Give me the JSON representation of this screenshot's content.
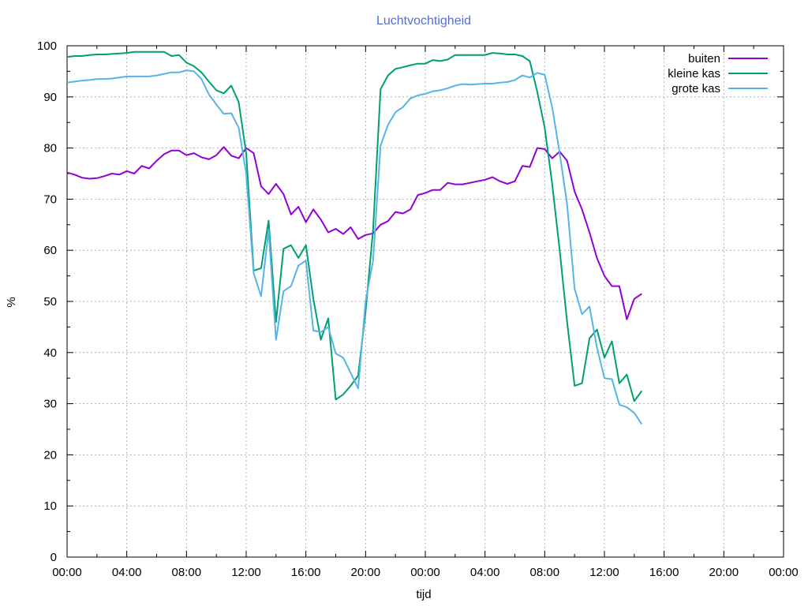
{
  "chart_data": {
    "type": "line",
    "title": "Luchtvochtigheid",
    "xlabel": "tijd",
    "ylabel": "%",
    "ylim": [
      0,
      100
    ],
    "xlim_hours": [
      0,
      48
    ],
    "x_unit": "hours since 00:00 (day 1)",
    "yticks": [
      "0",
      "10",
      "20",
      "30",
      "40",
      "50",
      "60",
      "70",
      "80",
      "90",
      "100"
    ],
    "xticks": [
      "00:00",
      "04:00",
      "08:00",
      "12:00",
      "16:00",
      "20:00",
      "00:00",
      "04:00",
      "08:00",
      "12:00",
      "16:00",
      "20:00",
      "00:00"
    ],
    "grid": true,
    "legend_position": "top-right",
    "series": [
      {
        "name": "buiten",
        "color": "#9400d3",
        "points": [
          [
            0,
            75.2
          ],
          [
            0.5,
            74.8
          ],
          [
            1,
            74.2
          ],
          [
            1.5,
            74
          ],
          [
            2,
            74.1
          ],
          [
            2.5,
            74.5
          ],
          [
            3,
            75
          ],
          [
            3.5,
            74.8
          ],
          [
            4,
            75.5
          ],
          [
            4.5,
            75
          ],
          [
            5,
            76.5
          ],
          [
            5.5,
            76
          ],
          [
            6,
            77.5
          ],
          [
            6.5,
            78.8
          ],
          [
            7,
            79.5
          ],
          [
            7.5,
            79.5
          ],
          [
            8,
            78.6
          ],
          [
            8.5,
            79
          ],
          [
            9,
            78.2
          ],
          [
            9.5,
            77.8
          ],
          [
            10,
            78.6
          ],
          [
            10.5,
            80.2
          ],
          [
            11,
            78.5
          ],
          [
            11.5,
            78
          ],
          [
            12,
            80
          ],
          [
            12.5,
            79
          ],
          [
            13,
            72.5
          ],
          [
            13.5,
            71
          ],
          [
            14,
            73
          ],
          [
            14.5,
            71
          ],
          [
            15,
            67
          ],
          [
            15.5,
            68.5
          ],
          [
            16,
            65.5
          ],
          [
            16.5,
            68
          ],
          [
            17,
            66
          ],
          [
            17.5,
            63.5
          ],
          [
            18,
            64.2
          ],
          [
            18.5,
            63.2
          ],
          [
            19,
            64.5
          ],
          [
            19.5,
            62.2
          ],
          [
            20,
            63
          ],
          [
            20.5,
            63.3
          ],
          [
            21,
            65
          ],
          [
            21.5,
            65.7
          ],
          [
            22,
            67.5
          ],
          [
            22.5,
            67.2
          ],
          [
            23,
            68
          ],
          [
            23.5,
            70.8
          ],
          [
            24,
            71.2
          ],
          [
            24.5,
            71.8
          ],
          [
            25,
            71.8
          ],
          [
            25.5,
            73.2
          ],
          [
            26,
            72.9
          ],
          [
            26.5,
            72.9
          ],
          [
            27,
            73.2
          ],
          [
            27.5,
            73.5
          ],
          [
            28,
            73.8
          ],
          [
            28.5,
            74.3
          ],
          [
            29,
            73.5
          ],
          [
            29.5,
            73
          ],
          [
            30,
            73.5
          ],
          [
            30.5,
            76.5
          ],
          [
            31,
            76.3
          ],
          [
            31.5,
            80
          ],
          [
            32,
            79.8
          ],
          [
            32.5,
            78
          ],
          [
            33,
            79.3
          ],
          [
            33.5,
            77.5
          ],
          [
            34,
            71.5
          ],
          [
            34.5,
            68
          ],
          [
            35,
            63.5
          ],
          [
            35.5,
            58.5
          ],
          [
            36,
            55
          ],
          [
            36.5,
            53
          ],
          [
            37,
            53
          ],
          [
            37.5,
            46.5
          ],
          [
            38,
            50.5
          ],
          [
            38.5,
            51.5
          ]
        ]
      },
      {
        "name": "kleine kas",
        "color": "#009e73",
        "points": [
          [
            0,
            97.8
          ],
          [
            0.5,
            98
          ],
          [
            1,
            98
          ],
          [
            1.5,
            98.2
          ],
          [
            2,
            98.3
          ],
          [
            2.5,
            98.3
          ],
          [
            3,
            98.4
          ],
          [
            3.5,
            98.5
          ],
          [
            4,
            98.6
          ],
          [
            4.5,
            98.8
          ],
          [
            5,
            98.8
          ],
          [
            5.5,
            98.8
          ],
          [
            6,
            98.8
          ],
          [
            6.5,
            98.8
          ],
          [
            7,
            98
          ],
          [
            7.5,
            98.2
          ],
          [
            8,
            96.7
          ],
          [
            8.5,
            96
          ],
          [
            9,
            94.8
          ],
          [
            9.5,
            93
          ],
          [
            10,
            91.3
          ],
          [
            10.5,
            90.7
          ],
          [
            11,
            92.2
          ],
          [
            11.5,
            89
          ],
          [
            12,
            79
          ],
          [
            12.5,
            56
          ],
          [
            13,
            56.5
          ],
          [
            13.5,
            65.8
          ],
          [
            14,
            46
          ],
          [
            14.5,
            60.3
          ],
          [
            15,
            61
          ],
          [
            15.5,
            58.5
          ],
          [
            16,
            61
          ],
          [
            16.5,
            50.5
          ],
          [
            17,
            42.5
          ],
          [
            17.5,
            46.7
          ],
          [
            18,
            30.8
          ],
          [
            18.5,
            31.8
          ],
          [
            19,
            33.5
          ],
          [
            19.5,
            35.5
          ],
          [
            20,
            48
          ],
          [
            20.5,
            64
          ],
          [
            21,
            91.5
          ],
          [
            21.5,
            94.2
          ],
          [
            22,
            95.5
          ],
          [
            22.5,
            95.8
          ],
          [
            23,
            96.2
          ],
          [
            23.5,
            96.5
          ],
          [
            24,
            96.5
          ],
          [
            24.5,
            97.2
          ],
          [
            25,
            97
          ],
          [
            25.5,
            97.3
          ],
          [
            26,
            98.2
          ],
          [
            26.5,
            98.2
          ],
          [
            27,
            98.2
          ],
          [
            27.5,
            98.2
          ],
          [
            28,
            98.2
          ],
          [
            28.5,
            98.6
          ],
          [
            29,
            98.5
          ],
          [
            29.5,
            98.3
          ],
          [
            30,
            98.3
          ],
          [
            30.5,
            98
          ],
          [
            31,
            97
          ],
          [
            31.5,
            91
          ],
          [
            32,
            84
          ],
          [
            32.5,
            73
          ],
          [
            33,
            60
          ],
          [
            33.5,
            46
          ],
          [
            34,
            33.5
          ],
          [
            34.5,
            34
          ],
          [
            35,
            42.8
          ],
          [
            35.5,
            44.5
          ],
          [
            36,
            39
          ],
          [
            36.5,
            42.2
          ],
          [
            37,
            34
          ],
          [
            37.5,
            35.7
          ],
          [
            38,
            30.5
          ],
          [
            38.5,
            32.5
          ]
        ]
      },
      {
        "name": "grote kas",
        "color": "#56b4e9",
        "points": [
          [
            0,
            92.8
          ],
          [
            0.5,
            93
          ],
          [
            1,
            93.2
          ],
          [
            1.5,
            93.3
          ],
          [
            2,
            93.5
          ],
          [
            2.5,
            93.5
          ],
          [
            3,
            93.6
          ],
          [
            3.5,
            93.8
          ],
          [
            4,
            94
          ],
          [
            4.5,
            94
          ],
          [
            5,
            94
          ],
          [
            5.5,
            94
          ],
          [
            6,
            94.2
          ],
          [
            6.5,
            94.5
          ],
          [
            7,
            94.8
          ],
          [
            7.5,
            94.8
          ],
          [
            8,
            95.2
          ],
          [
            8.5,
            95
          ],
          [
            9,
            93.5
          ],
          [
            9.5,
            90.5
          ],
          [
            10,
            88.5
          ],
          [
            10.5,
            86.7
          ],
          [
            11,
            86.8
          ],
          [
            11.5,
            84
          ],
          [
            12,
            75
          ],
          [
            12.5,
            55.5
          ],
          [
            13,
            51
          ],
          [
            13.5,
            64
          ],
          [
            14,
            42.5
          ],
          [
            14.5,
            52
          ],
          [
            15,
            53
          ],
          [
            15.5,
            57
          ],
          [
            16,
            58
          ],
          [
            16.5,
            44.3
          ],
          [
            17,
            44
          ],
          [
            17.5,
            45
          ],
          [
            18,
            39.8
          ],
          [
            18.5,
            39
          ],
          [
            19,
            36
          ],
          [
            19.5,
            33
          ],
          [
            20,
            50
          ],
          [
            20.5,
            58
          ],
          [
            21,
            80.5
          ],
          [
            21.5,
            84.5
          ],
          [
            22,
            87
          ],
          [
            22.5,
            88
          ],
          [
            23,
            89.7
          ],
          [
            23.5,
            90.3
          ],
          [
            24,
            90.6
          ],
          [
            24.5,
            91.1
          ],
          [
            25,
            91.3
          ],
          [
            25.5,
            91.7
          ],
          [
            26,
            92.2
          ],
          [
            26.5,
            92.5
          ],
          [
            27,
            92.4
          ],
          [
            27.5,
            92.5
          ],
          [
            28,
            92.6
          ],
          [
            28.5,
            92.6
          ],
          [
            29,
            92.8
          ],
          [
            29.5,
            92.9
          ],
          [
            30,
            93.3
          ],
          [
            30.5,
            94.2
          ],
          [
            31,
            93.8
          ],
          [
            31.5,
            94.7
          ],
          [
            32,
            94.3
          ],
          [
            32.5,
            88
          ],
          [
            33,
            79
          ],
          [
            33.5,
            69
          ],
          [
            34,
            52.5
          ],
          [
            34.5,
            47.5
          ],
          [
            35,
            49
          ],
          [
            35.5,
            41
          ],
          [
            36,
            35
          ],
          [
            36.5,
            34.8
          ],
          [
            37,
            29.8
          ],
          [
            37.5,
            29.3
          ],
          [
            38,
            28.2
          ],
          [
            38.5,
            26
          ]
        ]
      }
    ]
  }
}
